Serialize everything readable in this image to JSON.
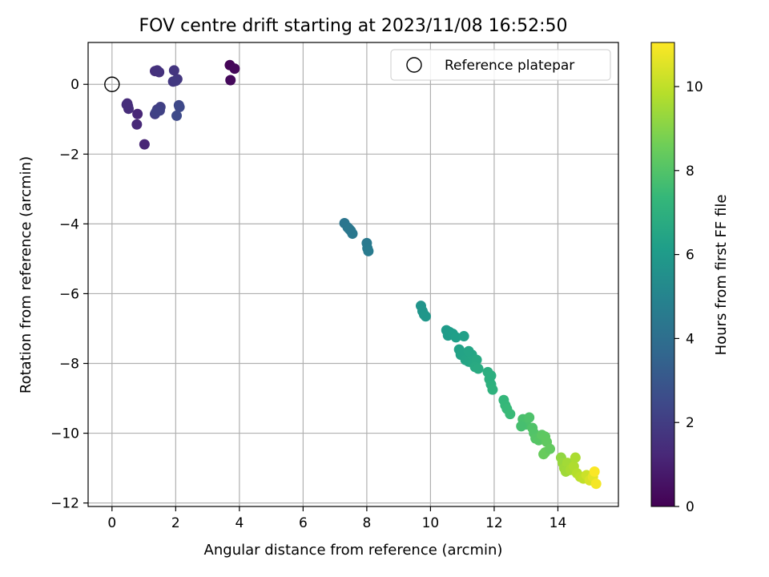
{
  "chart_data": {
    "type": "scatter",
    "title": "FOV centre drift starting at 2023/11/08 16:52:50",
    "xlabel": "Angular distance from reference (arcmin)",
    "ylabel": "Rotation from reference (arcmin)",
    "xlim": [
      -0.75,
      15.9
    ],
    "ylim": [
      -12.1,
      1.2
    ],
    "xticks": [
      0,
      2,
      4,
      6,
      8,
      10,
      12,
      14
    ],
    "yticks": [
      0,
      -2,
      -4,
      -6,
      -8,
      -10,
      -12
    ],
    "xtick_labels": [
      "0",
      "2",
      "4",
      "6",
      "8",
      "10",
      "12",
      "14"
    ],
    "ytick_labels": [
      "0",
      "−2",
      "−4",
      "−6",
      "−8",
      "−10",
      "−12"
    ],
    "grid": true,
    "legend": {
      "placement": "top-right",
      "entries": [
        "Reference platepar"
      ]
    },
    "reference_point": {
      "x": 0,
      "y": 0,
      "marker": "open-circle"
    },
    "colorbar": {
      "label": "Hours from first FF file",
      "range": [
        0,
        11.05
      ],
      "ticks": [
        0,
        2,
        4,
        6,
        8,
        10
      ],
      "tick_labels": [
        "0",
        "2",
        "4",
        "6",
        "8",
        "10"
      ],
      "colormap": "viridis"
    },
    "colormap_stops": [
      "#440154",
      "#482878",
      "#3e4989",
      "#31688e",
      "#26828e",
      "#1f9e89",
      "#35b779",
      "#6ece58",
      "#b5de2b",
      "#fde725"
    ],
    "series": [
      {
        "x": [
          3.7,
          3.85,
          3.72,
          1.95,
          2.05,
          1.92,
          2.0,
          1.35,
          1.48,
          1.42,
          0.48,
          0.5,
          0.52,
          0.46,
          0.8,
          0.78,
          1.02,
          1.35,
          1.42,
          1.52,
          1.5,
          1.38,
          2.1,
          2.12,
          2.03,
          7.3,
          7.4,
          7.5,
          7.55,
          7.45,
          8.0,
          8.02,
          8.05,
          9.7,
          9.75,
          9.8,
          9.85,
          10.5,
          10.55,
          10.6,
          10.7,
          10.8,
          11.05,
          10.9,
          10.95,
          11.0,
          11.1,
          11.2,
          11.3,
          11.2,
          11.35,
          11.45,
          11.4,
          11.5,
          11.8,
          11.85,
          11.9,
          11.95,
          11.9,
          12.3,
          12.35,
          12.4,
          12.5,
          12.9,
          13.0,
          13.1,
          12.85,
          13.2,
          13.25,
          13.3,
          13.4,
          13.5,
          13.6,
          13.65,
          13.6,
          13.55,
          13.75,
          14.1,
          14.15,
          14.2,
          14.3,
          14.35,
          14.25,
          14.4,
          14.5,
          14.55,
          14.6,
          14.7,
          14.8,
          14.9,
          15.0,
          15.1,
          15.2,
          15.15
        ],
        "y": [
          0.55,
          0.45,
          0.12,
          0.4,
          0.15,
          0.08,
          0.1,
          0.38,
          0.35,
          0.4,
          -0.55,
          -0.62,
          -0.7,
          -0.58,
          -0.85,
          -1.15,
          -1.72,
          -0.85,
          -0.72,
          -0.65,
          -0.75,
          -0.8,
          -0.6,
          -0.65,
          -0.9,
          -3.98,
          -4.1,
          -4.2,
          -4.28,
          -4.15,
          -4.55,
          -4.7,
          -4.78,
          -6.35,
          -6.5,
          -6.6,
          -6.65,
          -7.05,
          -7.2,
          -7.1,
          -7.15,
          -7.25,
          -7.22,
          -7.6,
          -7.75,
          -7.7,
          -7.9,
          -7.95,
          -7.75,
          -7.65,
          -8.0,
          -7.9,
          -8.1,
          -8.15,
          -8.25,
          -8.45,
          -8.6,
          -8.75,
          -8.35,
          -9.05,
          -9.2,
          -9.3,
          -9.45,
          -9.6,
          -9.75,
          -9.55,
          -9.8,
          -9.85,
          -10.0,
          -10.15,
          -10.2,
          -10.05,
          -10.1,
          -10.25,
          -10.55,
          -10.6,
          -10.45,
          -10.7,
          -10.85,
          -11.0,
          -10.85,
          -11.05,
          -11.1,
          -11.05,
          -10.95,
          -10.7,
          -11.15,
          -11.25,
          -11.3,
          -11.2,
          -11.35,
          -11.25,
          -11.45,
          -11.1
        ],
        "hours": [
          0.1,
          0.2,
          0.25,
          1.7,
          1.75,
          1.8,
          1.85,
          1.5,
          1.55,
          1.6,
          1.3,
          1.35,
          1.4,
          1.45,
          1.2,
          1.25,
          1.15,
          2.0,
          2.05,
          2.1,
          2.15,
          2.2,
          2.4,
          2.45,
          2.5,
          4.3,
          4.35,
          4.4,
          4.45,
          4.38,
          4.5,
          4.55,
          4.6,
          5.7,
          5.75,
          5.8,
          5.85,
          6.0,
          6.05,
          6.1,
          6.15,
          6.2,
          6.25,
          6.3,
          6.35,
          6.4,
          6.45,
          6.5,
          6.55,
          6.48,
          6.6,
          6.65,
          6.7,
          6.75,
          6.9,
          6.95,
          7.0,
          7.05,
          6.92,
          7.3,
          7.35,
          7.4,
          7.45,
          7.8,
          7.85,
          7.9,
          7.75,
          7.95,
          8.0,
          8.05,
          8.1,
          8.2,
          8.25,
          8.3,
          8.4,
          8.45,
          8.35,
          9.2,
          9.3,
          9.4,
          9.5,
          9.55,
          9.45,
          9.6,
          9.7,
          9.65,
          9.8,
          9.9,
          10.0,
          10.2,
          10.4,
          10.6,
          10.9,
          11.0
        ]
      }
    ]
  }
}
